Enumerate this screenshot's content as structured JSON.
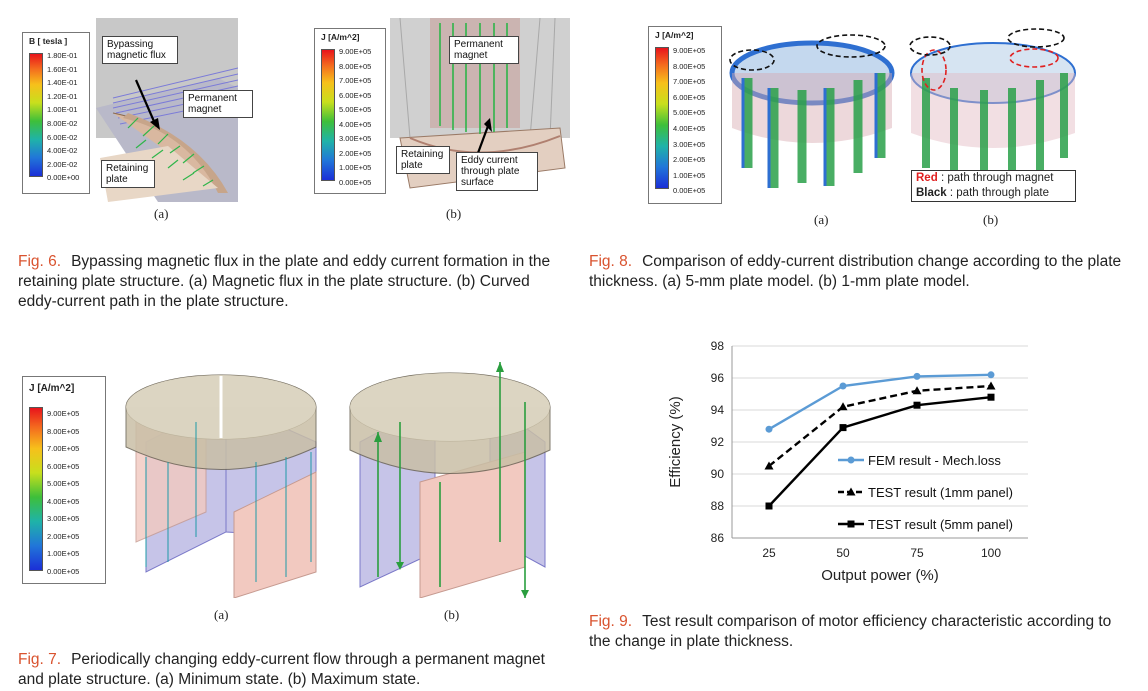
{
  "fig6": {
    "legend_title": "B [ tesla ]",
    "legend_ticks": [
      "1.80E-01",
      "1.60E-01",
      "1.40E-01",
      "1.20E-01",
      "1.00E-01",
      "8.00E-02",
      "6.00E-02",
      "4.00E-02",
      "2.00E-02",
      "0.00E+00"
    ],
    "a_callout_flux": "Bypassing magnetic flux",
    "a_callout_magnet": "Permanent magnet",
    "a_callout_plate": "Retaining plate",
    "b_legend_title": "J [A/m^2]",
    "b_callout_magnet": "Permanent magnet",
    "b_callout_plate": "Retaining plate",
    "b_callout_eddy": "Eddy current through plate surface",
    "sub_a": "(a)",
    "sub_b": "(b)",
    "caption_label": "Fig. 6.",
    "caption_text": "Bypassing magnetic flux in the plate and eddy current formation in the retaining plate structure. (a) Magnetic flux in the plate structure. (b) Curved eddy-current path in the plate structure."
  },
  "j_ticks": [
    "9.00E+05",
    "8.00E+05",
    "7.00E+05",
    "6.00E+05",
    "5.00E+05",
    "4.00E+05",
    "3.00E+05",
    "2.00E+05",
    "1.00E+05",
    "0.00E+05"
  ],
  "fig7": {
    "legend_title": "J [A/m^2]",
    "sub_a": "(a)",
    "sub_b": "(b)",
    "caption_label": "Fig. 7.",
    "caption_text": "Periodically changing eddy-current flow through a permanent magnet and plate structure. (a) Minimum state. (b) Maximum state."
  },
  "fig8": {
    "legend_title": "J [A/m^2]",
    "note_red_key": "Red",
    "note_red_text": ": path through magnet",
    "note_black_key": "Black",
    "note_black_text": ": path through plate",
    "sub_a": "(a)",
    "sub_b": "(b)",
    "caption_label": "Fig. 8.",
    "caption_text": "Comparison of eddy-current distribution change according to the plate thickness. (a) 5-mm plate model. (b) 1-mm plate model."
  },
  "fig9": {
    "caption_label": "Fig. 9.",
    "caption_text": "Test result comparison of motor efficiency characteristic according to the change in plate thickness."
  },
  "chart_data": {
    "type": "line",
    "title": "",
    "xlabel": "Output power (%)",
    "ylabel": "Efficiency (%)",
    "categories": [
      "25",
      "50",
      "75",
      "100"
    ],
    "ylim": [
      86,
      98
    ],
    "yticks": [
      "86",
      "88",
      "90",
      "92",
      "94",
      "96",
      "98"
    ],
    "grid": "horizontal",
    "legend_position": "center-right",
    "series": [
      {
        "name": "FEM result - Mech.loss",
        "values": [
          92.8,
          95.5,
          96.1,
          96.2
        ],
        "color": "#5b9bd5",
        "style": "solid",
        "marker": "circle"
      },
      {
        "name": "TEST result (1mm panel)",
        "values": [
          90.5,
          94.2,
          95.2,
          95.5
        ],
        "color": "#000000",
        "style": "dashed",
        "marker": "triangle"
      },
      {
        "name": "TEST result (5mm panel)",
        "values": [
          88.0,
          92.9,
          94.3,
          94.8
        ],
        "color": "#000000",
        "style": "solid",
        "marker": "square"
      }
    ]
  }
}
